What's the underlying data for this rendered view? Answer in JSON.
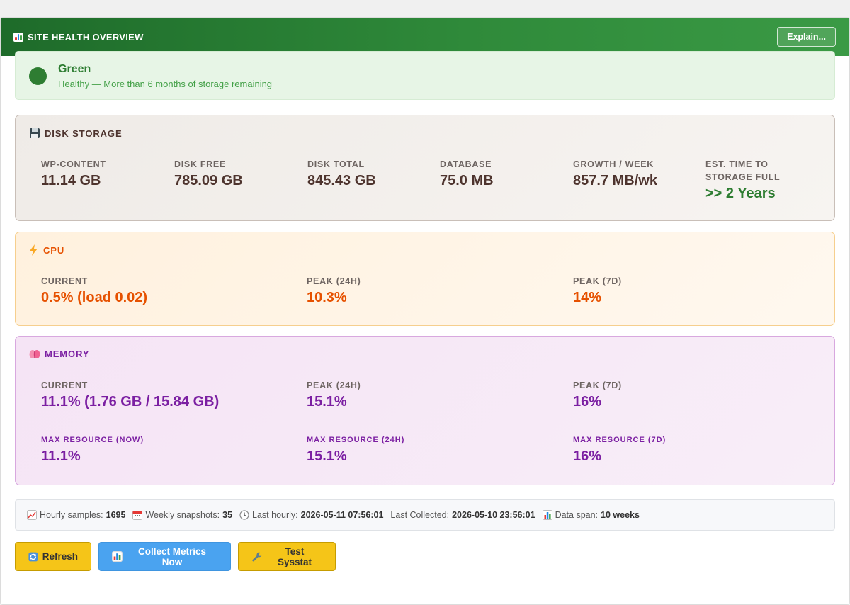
{
  "header": {
    "title": "SITE HEALTH OVERVIEW",
    "explain_label": "Explain..."
  },
  "status": {
    "level": "Green",
    "description": "Healthy — More than 6 months of storage remaining",
    "color": "#2e7d32"
  },
  "disk": {
    "title": "DISK STORAGE",
    "icon": "floppy-disk-icon",
    "metrics": [
      {
        "label": "WP-CONTENT",
        "value": "11.14 GB"
      },
      {
        "label": "DISK FREE",
        "value": "785.09 GB"
      },
      {
        "label": "DISK TOTAL",
        "value": "845.43 GB"
      },
      {
        "label": "DATABASE",
        "value": "75.0 MB"
      },
      {
        "label": "GROWTH / WEEK",
        "value": "857.7 MB/wk"
      },
      {
        "label": "EST. TIME TO STORAGE FULL",
        "value": ">> 2 Years"
      }
    ]
  },
  "cpu": {
    "title": "CPU",
    "icon": "lightning-icon",
    "metrics": [
      {
        "label": "CURRENT",
        "value": "0.5% (load 0.02)"
      },
      {
        "label": "PEAK (24H)",
        "value": "10.3%"
      },
      {
        "label": "PEAK (7D)",
        "value": "14%"
      }
    ]
  },
  "memory": {
    "title": "MEMORY",
    "icon": "brain-icon",
    "metrics": [
      {
        "label": "CURRENT",
        "value": "11.1% (1.76 GB / 15.84 GB)"
      },
      {
        "label": "PEAK (24H)",
        "value": "15.1%"
      },
      {
        "label": "PEAK (7D)",
        "value": "16%"
      }
    ],
    "max_resource": [
      {
        "label": "MAX RESOURCE (NOW)",
        "value": "11.1%"
      },
      {
        "label": "MAX RESOURCE (24H)",
        "value": "15.1%"
      },
      {
        "label": "MAX RESOURCE (7D)",
        "value": "16%"
      }
    ]
  },
  "footer": {
    "hourly_samples_label": "Hourly samples:",
    "hourly_samples": "1695",
    "weekly_snapshots_label": "Weekly snapshots:",
    "weekly_snapshots": "35",
    "last_hourly_label": "Last hourly:",
    "last_hourly": "2026-05-11 07:56:01",
    "last_collected_label": "Last Collected:",
    "last_collected": "2026-05-10 23:56:01",
    "data_span_label": "Data span:",
    "data_span": "10 weeks"
  },
  "buttons": {
    "refresh": "Refresh",
    "collect": "Collect Metrics Now",
    "test": "Test Sysstat"
  }
}
